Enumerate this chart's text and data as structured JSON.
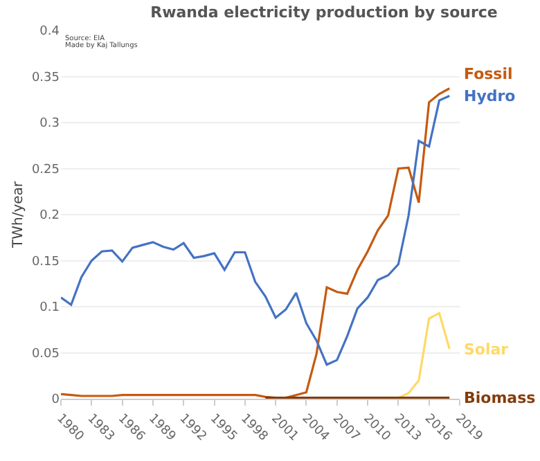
{
  "chart_data": {
    "type": "line",
    "title": "Rwanda electricity production by source",
    "ylabel": "TWh/year",
    "annotations": [
      "Source: EIA",
      "Made by Kaj Tallungs"
    ],
    "x": [
      1980,
      1981,
      1982,
      1983,
      1984,
      1985,
      1986,
      1987,
      1988,
      1989,
      1990,
      1991,
      1992,
      1993,
      1994,
      1995,
      1996,
      1997,
      1998,
      1999,
      2000,
      2001,
      2002,
      2003,
      2004,
      2005,
      2006,
      2007,
      2008,
      2009,
      2010,
      2011,
      2012,
      2013,
      2014,
      2015,
      2016,
      2017,
      2018
    ],
    "series": [
      {
        "name": "Fossil",
        "color": "#c55a11",
        "values": [
          0.005,
          0.004,
          0.003,
          0.003,
          0.003,
          0.003,
          0.004,
          0.004,
          0.004,
          0.004,
          0.004,
          0.004,
          0.004,
          0.004,
          0.004,
          0.004,
          0.004,
          0.004,
          0.004,
          0.004,
          0.002,
          0.001,
          0.001,
          0.004,
          0.007,
          0.049,
          0.121,
          0.116,
          0.114,
          0.14,
          0.16,
          0.183,
          0.199,
          0.25,
          0.251,
          0.213,
          0.322,
          0.331,
          0.337
        ]
      },
      {
        "name": "Hydro",
        "color": "#4472c4",
        "values": [
          0.11,
          0.102,
          0.132,
          0.15,
          0.16,
          0.161,
          0.149,
          0.164,
          0.167,
          0.17,
          0.165,
          0.162,
          0.169,
          0.153,
          0.155,
          0.158,
          0.14,
          0.159,
          0.159,
          0.127,
          0.111,
          0.088,
          0.097,
          0.115,
          0.082,
          0.063,
          0.037,
          0.042,
          0.068,
          0.098,
          0.11,
          0.129,
          0.134,
          0.146,
          0.199,
          0.28,
          0.274,
          0.324,
          0.329
        ]
      },
      {
        "name": "Solar",
        "color": "#ffd966",
        "values": [
          null,
          null,
          null,
          null,
          null,
          null,
          null,
          null,
          null,
          null,
          null,
          null,
          null,
          null,
          null,
          null,
          null,
          null,
          null,
          null,
          null,
          null,
          null,
          null,
          null,
          null,
          null,
          null,
          null,
          null,
          null,
          null,
          null,
          0.001,
          0.006,
          0.02,
          0.087,
          0.093,
          0.054
        ]
      },
      {
        "name": "Biomass",
        "color": "#843c0c",
        "values": [
          null,
          null,
          null,
          null,
          null,
          null,
          null,
          null,
          null,
          null,
          null,
          null,
          null,
          null,
          null,
          null,
          null,
          null,
          null,
          null,
          0.001,
          0.001,
          0.001,
          0.001,
          0.001,
          0.001,
          0.001,
          0.001,
          0.001,
          0.001,
          0.001,
          0.001,
          0.001,
          0.001,
          0.001,
          0.001,
          0.001,
          0.001,
          0.001
        ]
      }
    ],
    "xlim": [
      1980,
      2019
    ],
    "xticks": [
      1980,
      1983,
      1986,
      1989,
      1992,
      1995,
      1998,
      2001,
      2004,
      2007,
      2010,
      2013,
      2016,
      2019
    ],
    "ylim": [
      0,
      0.4
    ],
    "yticks": [
      0,
      0.05,
      0.1,
      0.15,
      0.2,
      0.25,
      0.3,
      0.35,
      0.4
    ],
    "grid": "y",
    "legend": false,
    "marker": "none",
    "line_style": "solid"
  }
}
